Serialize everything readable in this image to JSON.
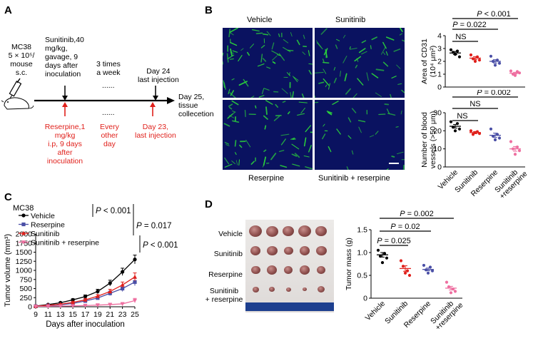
{
  "panels": {
    "a": "A",
    "b": "B",
    "c": "C",
    "d": "D"
  },
  "panel_a": {
    "model_text": "MC38\n5 × 10⁵/\nmouse\ns.c.",
    "sunitinib_text": "Sunitinib,40\nmg/kg,\ngavage, 9\ndays after\ninoculation",
    "three_times": "3 times\na week",
    "dots": "......",
    "day24": "Day 24\nlast injection",
    "day25": "Day 25,\ntissue\ncollecetion",
    "reserpine_text": "Reserpine,1\nmg/kg\ni.p, 9 days\nafter\ninoculation",
    "every_other": "Every\nother\nday",
    "day23": "Day 23,\nlast injection",
    "red_color": "#e0201b"
  },
  "panel_b": {
    "micro_labels": [
      "Vehicle",
      "Sunitinib",
      "Reserpine",
      "Sunitinib + reserpine"
    ],
    "vessel_color": "#2bd63a",
    "background_color": "#0a1260"
  },
  "panel_d": {
    "row_labels": [
      "Vehicle",
      "Sunitinib",
      "Reserpine",
      "Sunitinib\n+ reserpine"
    ]
  },
  "chart_data": [
    {
      "id": "cd31",
      "type": "scatter",
      "ylabel": "Area of CD31\n(10⁴ μm²)",
      "yticks": [
        0,
        1,
        2,
        3,
        4
      ],
      "ylim": [
        0,
        4
      ],
      "categories": [
        "Vehicle",
        "Sunitinib",
        "Reserpine",
        "Sunitinib\n+reserpine"
      ],
      "colors": [
        "#000000",
        "#e0201b",
        "#4a4fa6",
        "#ee6fa0"
      ],
      "series": [
        {
          "points": [
            2.9,
            2.7,
            2.55,
            2.8,
            2.35
          ],
          "mean": 2.65,
          "sem": 0.12
        },
        {
          "points": [
            2.5,
            2.2,
            2.0,
            2.35,
            2.1
          ],
          "mean": 2.25,
          "sem": 0.12
        },
        {
          "points": [
            2.4,
            2.0,
            1.7,
            2.1,
            1.85
          ],
          "mean": 2.0,
          "sem": 0.13
        },
        {
          "points": [
            1.25,
            1.0,
            0.9,
            1.2,
            1.1
          ],
          "mean": 1.08,
          "sem": 0.07
        }
      ],
      "brackets": [
        {
          "from": 0,
          "to": 3,
          "label": "P < 0.001"
        },
        {
          "from": 0,
          "to": 2,
          "label": "P = 0.022"
        },
        {
          "from": 0,
          "to": 1,
          "label": "NS"
        }
      ]
    },
    {
      "id": "vessels",
      "type": "scatter",
      "ylabel": "Number of blood\nvessels (>50 μm)",
      "yticks": [
        0,
        10,
        20,
        30
      ],
      "ylim": [
        0,
        30
      ],
      "categories": [
        "Vehicle",
        "Sunitinib",
        "Reserpine",
        "Sunitinib\n+reserpine"
      ],
      "colors": [
        "#000000",
        "#e0201b",
        "#4a4fa6",
        "#ee6fa0"
      ],
      "series": [
        {
          "points": [
            25,
            22,
            20,
            24,
            21
          ],
          "mean": 22.5,
          "sem": 1.0
        },
        {
          "points": [
            20,
            18,
            19,
            19.5,
            18.5
          ],
          "mean": 19,
          "sem": 0.6
        },
        {
          "points": [
            21,
            17,
            15,
            18,
            16
          ],
          "mean": 17.5,
          "sem": 1.2
        },
        {
          "points": [
            14,
            10,
            7,
            11,
            9
          ],
          "mean": 10,
          "sem": 1.3
        }
      ],
      "brackets": [
        {
          "from": 0,
          "to": 3,
          "label": "P = 0.002"
        },
        {
          "from": 0,
          "to": 2,
          "label": "NS"
        },
        {
          "from": 0,
          "to": 1,
          "label": "NS"
        }
      ]
    },
    {
      "id": "tumor_volume",
      "type": "line",
      "title": "MC38",
      "xlabel": "Days after inoculation",
      "ylabel": "Tumor volume (mm³)",
      "x": [
        9,
        11,
        13,
        15,
        17,
        19,
        21,
        23,
        25
      ],
      "xticks": [
        "9",
        "11",
        "13",
        "15",
        "17",
        "19",
        "21",
        "23",
        "25"
      ],
      "yticks": [
        0,
        250,
        500,
        750,
        1000,
        1250,
        1500,
        1750,
        2000
      ],
      "ylim": [
        0,
        2000
      ],
      "series": [
        {
          "name": "Vehicle",
          "color": "#000000",
          "marker": "circle",
          "values": [
            20,
            60,
            110,
            190,
            280,
            420,
            650,
            960,
            1300
          ],
          "err": [
            10,
            15,
            20,
            30,
            45,
            60,
            80,
            100,
            120
          ]
        },
        {
          "name": "Reserpine",
          "color": "#4a4fa6",
          "marker": "square",
          "values": [
            15,
            35,
            55,
            90,
            160,
            240,
            370,
            500,
            680
          ],
          "err": [
            8,
            10,
            15,
            20,
            30,
            40,
            60,
            80,
            100
          ]
        },
        {
          "name": "Sunitinib",
          "color": "#e0201b",
          "marker": "triangle",
          "values": [
            15,
            40,
            70,
            120,
            190,
            290,
            420,
            600,
            820
          ],
          "err": [
            8,
            12,
            15,
            25,
            35,
            45,
            60,
            80,
            110
          ]
        },
        {
          "name": "Sunitinib + reserpine",
          "color": "#ee6fa0",
          "marker": "triangle-down",
          "values": [
            10,
            15,
            20,
            25,
            35,
            45,
            60,
            80,
            170
          ],
          "err": [
            5,
            5,
            8,
            8,
            10,
            12,
            15,
            20,
            60
          ]
        }
      ],
      "annotations": [
        "P < 0.001",
        "P = 0.017",
        "P < 0.001"
      ]
    },
    {
      "id": "tumor_mass",
      "type": "scatter",
      "ylabel": "Tumor mass (g)",
      "yticks": [
        0,
        0.5,
        1.0,
        1.5
      ],
      "ytick_labels": [
        "0",
        "0.5",
        "1.0",
        "1.5"
      ],
      "ylim": [
        0,
        1.5
      ],
      "categories": [
        "Vehicle",
        "Sunitinib",
        "Reserpine",
        "Sunitinib\n+reserpine"
      ],
      "colors": [
        "#000000",
        "#e0201b",
        "#4a4fa6",
        "#ee6fa0"
      ],
      "series": [
        {
          "points": [
            1.05,
            0.92,
            0.78,
            0.98,
            0.88
          ],
          "mean": 0.95,
          "sem": 0.05
        },
        {
          "points": [
            0.82,
            0.7,
            0.55,
            0.6,
            0.5
          ],
          "mean": 0.65,
          "sem": 0.06
        },
        {
          "points": [
            0.72,
            0.62,
            0.55,
            0.68,
            0.6
          ],
          "mean": 0.63,
          "sem": 0.03
        },
        {
          "points": [
            0.35,
            0.25,
            0.12,
            0.2,
            0.15
          ],
          "mean": 0.22,
          "sem": 0.04
        }
      ],
      "brackets": [
        {
          "from": 0,
          "to": 3,
          "label": "P = 0.002"
        },
        {
          "from": 0,
          "to": 2,
          "label": "P = 0.02"
        },
        {
          "from": 0,
          "to": 1,
          "label": "P = 0.025"
        }
      ]
    }
  ]
}
